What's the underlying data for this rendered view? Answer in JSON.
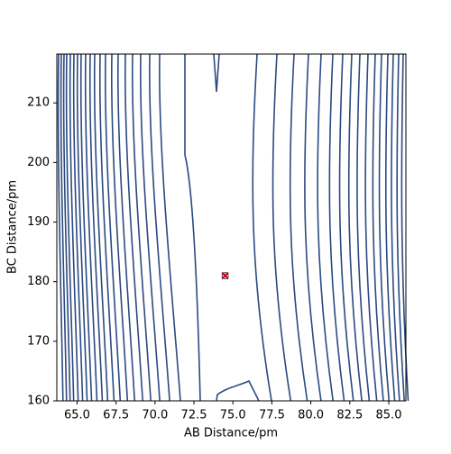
{
  "chart_data": {
    "type": "contour",
    "x_label": "AB Distance/pm",
    "y_label": "BC Distance/pm",
    "xlim": [
      63.7,
      86.1
    ],
    "ylim": [
      160,
      218.2
    ],
    "xticks": [
      {
        "value": 65,
        "label": "65.0"
      },
      {
        "value": 67.5,
        "label": "67.5"
      },
      {
        "value": 70,
        "label": "70.0"
      },
      {
        "value": 72.5,
        "label": "72.5"
      },
      {
        "value": 75,
        "label": "75.0"
      },
      {
        "value": 77.5,
        "label": "77.5"
      },
      {
        "value": 80,
        "label": "80.0"
      },
      {
        "value": 82.5,
        "label": "82.5"
      },
      {
        "value": 85,
        "label": "85.0"
      }
    ],
    "yticks": [
      160,
      170,
      180,
      190,
      200,
      210
    ],
    "line_color": "#2b4a80",
    "marker": {
      "x": 74.5,
      "y": 181,
      "color": "#cc0000"
    }
  }
}
